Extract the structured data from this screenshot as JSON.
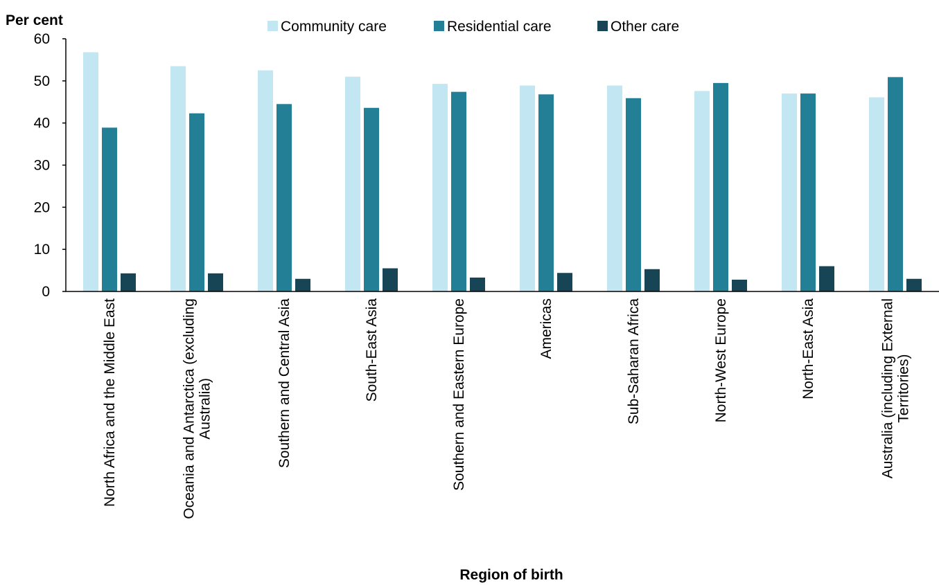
{
  "chart_data": {
    "type": "bar",
    "ylabel": "Per cent",
    "xlabel": "Region of birth",
    "ylim": [
      0,
      60
    ],
    "yticks": [
      "0",
      "10",
      "20",
      "30",
      "40",
      "50",
      "60"
    ],
    "grid": false,
    "legend_position": "top",
    "categories": [
      "North Africa and the Middle East",
      "Oceania and Antarctica (excluding Australia)",
      "Southern and Central Asia",
      "South-East Asia",
      "Southern and Eastern Europe",
      "Americas",
      "Sub-Saharan Africa",
      "North-West Europe",
      "North-East Asia",
      "Australia (including External Territories)"
    ],
    "series": [
      {
        "name": "Community care",
        "color": "#c3e6f3",
        "values": [
          56.8,
          53.5,
          52.5,
          51.0,
          49.3,
          48.9,
          48.9,
          47.6,
          47.0,
          46.1
        ]
      },
      {
        "name": "Residential care",
        "color": "#237f96",
        "values": [
          38.9,
          42.3,
          44.5,
          43.6,
          47.4,
          46.8,
          45.9,
          49.5,
          47.0,
          50.9
        ]
      },
      {
        "name": "Other care",
        "color": "#174556",
        "values": [
          4.3,
          4.3,
          3.0,
          5.5,
          3.3,
          4.4,
          5.3,
          2.8,
          6.0,
          3.0
        ]
      }
    ]
  }
}
